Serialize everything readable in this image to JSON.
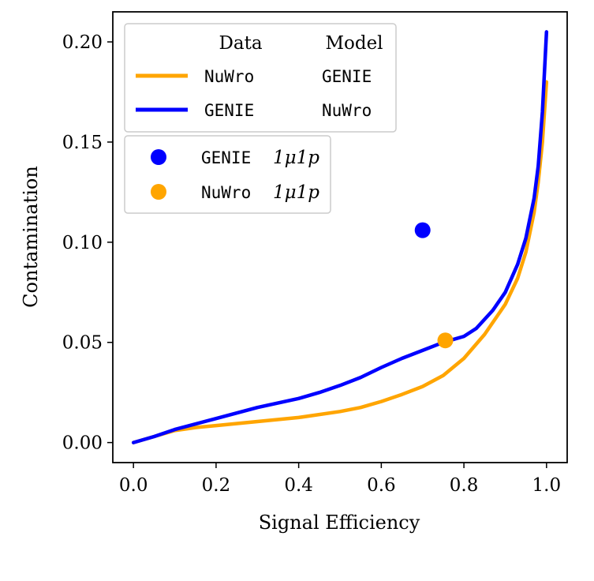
{
  "chart_data": {
    "type": "line",
    "xlabel": "Signal Efficiency",
    "ylabel": "Contamination",
    "xlim": [
      -0.05,
      1.05
    ],
    "ylim": [
      -0.01,
      0.215
    ],
    "xticks": [
      0.0,
      0.2,
      0.4,
      0.6,
      0.8,
      1.0
    ],
    "xtick_labels": [
      "0.0",
      "0.2",
      "0.4",
      "0.6",
      "0.8",
      "1.0"
    ],
    "yticks": [
      0.0,
      0.05,
      0.1,
      0.15,
      0.2
    ],
    "ytick_labels": [
      "0.00",
      "0.05",
      "0.10",
      "0.15",
      "0.20"
    ],
    "grid": false,
    "legend_headers": {
      "data": "Data",
      "model": "Model"
    },
    "series": [
      {
        "name": "NuWro / GENIE",
        "data_label": "NuWro",
        "model_label": "GENIE",
        "color": "#ffa500",
        "x": [
          0.0,
          0.05,
          0.1,
          0.15,
          0.2,
          0.3,
          0.4,
          0.5,
          0.55,
          0.6,
          0.65,
          0.7,
          0.75,
          0.8,
          0.85,
          0.9,
          0.93,
          0.95,
          0.97,
          0.98,
          0.99,
          1.0
        ],
        "y": [
          0.0,
          0.003,
          0.006,
          0.0075,
          0.0085,
          0.0105,
          0.0125,
          0.0155,
          0.0175,
          0.0205,
          0.024,
          0.028,
          0.0335,
          0.042,
          0.054,
          0.069,
          0.082,
          0.095,
          0.115,
          0.13,
          0.15,
          0.18
        ]
      },
      {
        "name": "GENIE / NuWro",
        "data_label": "GENIE",
        "model_label": "NuWro",
        "color": "#0000ff",
        "x": [
          0.0,
          0.05,
          0.1,
          0.2,
          0.3,
          0.4,
          0.45,
          0.5,
          0.55,
          0.6,
          0.65,
          0.7,
          0.75,
          0.8,
          0.83,
          0.87,
          0.9,
          0.93,
          0.95,
          0.97,
          0.98,
          0.99,
          1.0
        ],
        "y": [
          0.0,
          0.003,
          0.0065,
          0.012,
          0.0175,
          0.022,
          0.025,
          0.0285,
          0.0325,
          0.0375,
          0.042,
          0.046,
          0.05,
          0.053,
          0.057,
          0.066,
          0.075,
          0.089,
          0.102,
          0.122,
          0.138,
          0.165,
          0.205
        ]
      }
    ],
    "points": [
      {
        "name": "GENIE 1μ1p",
        "label_mono": "GENIE",
        "label_math": "1μ1p",
        "color": "#0000ff",
        "x": 0.7,
        "y": 0.106
      },
      {
        "name": "NuWro 1μ1p",
        "label_mono": "NuWro",
        "label_math": "1μ1p",
        "color": "#ffa500",
        "x": 0.755,
        "y": 0.051
      }
    ]
  }
}
